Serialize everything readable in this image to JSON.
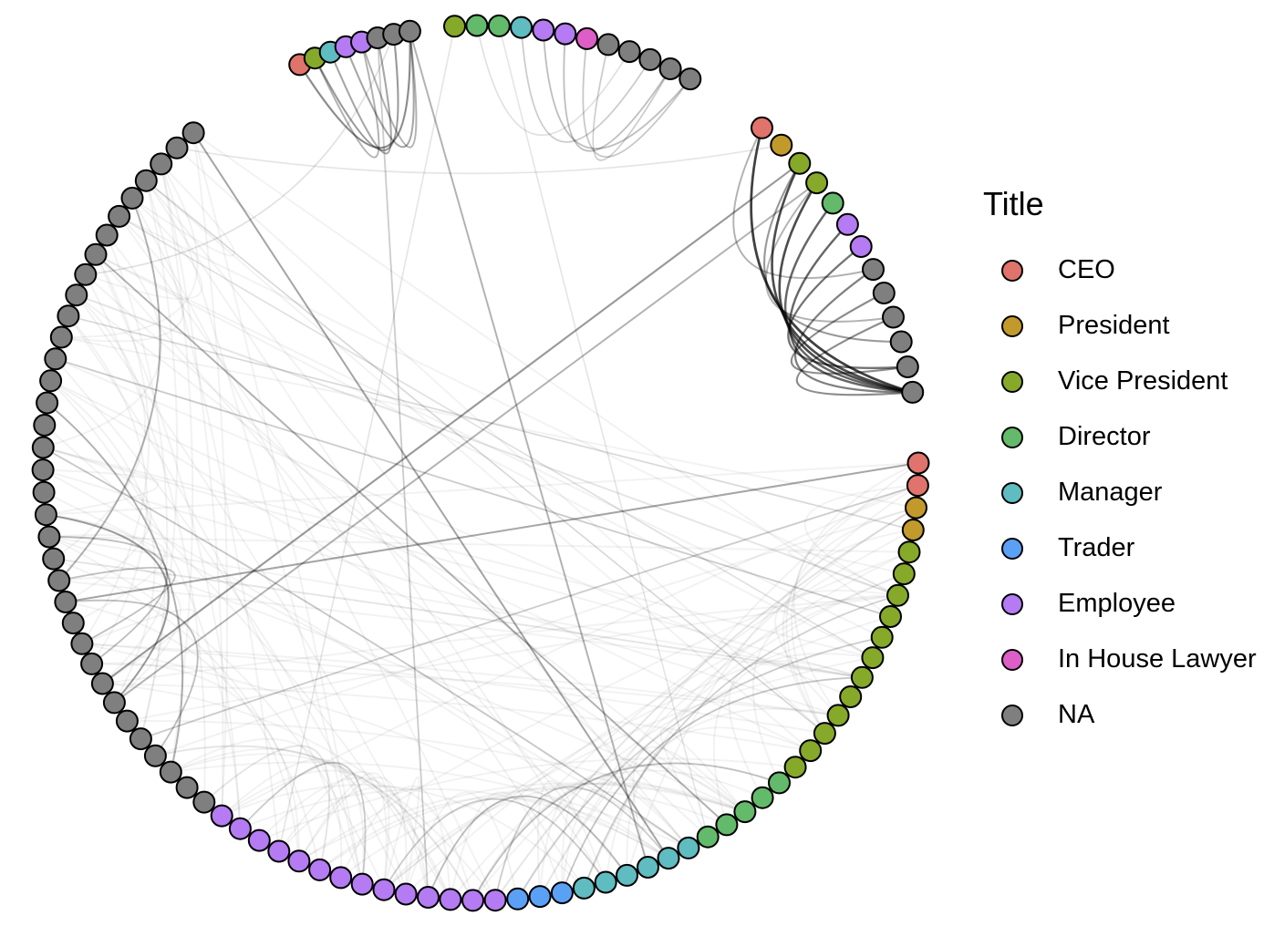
{
  "legend": {
    "title": "Title",
    "items": [
      {
        "key": "CEO",
        "label": "CEO",
        "color": "#E0736B"
      },
      {
        "key": "President",
        "label": "President",
        "color": "#C29A2C"
      },
      {
        "key": "Vice President",
        "label": "Vice President",
        "color": "#86A92A"
      },
      {
        "key": "Director",
        "label": "Director",
        "color": "#63BA6A"
      },
      {
        "key": "Manager",
        "label": "Manager",
        "color": "#5FBCC0"
      },
      {
        "key": "Trader",
        "label": "Trader",
        "color": "#5AA1F6"
      },
      {
        "key": "Employee",
        "label": "Employee",
        "color": "#B47BF2"
      },
      {
        "key": "In House Lawyer",
        "label": "In House Lawyer",
        "color": "#DD5EC7"
      },
      {
        "key": "NA",
        "label": "NA",
        "color": "#7F7F7F"
      }
    ]
  },
  "diagram": {
    "type": "circular-network",
    "clusters": [
      {
        "name": "top-left",
        "nodes": [
          "CEO",
          "Vice President",
          "Manager",
          "Employee",
          "Employee",
          "NA",
          "NA",
          "NA"
        ]
      },
      {
        "name": "top-right",
        "nodes": [
          "Vice President",
          "Director",
          "Director",
          "Manager",
          "Employee",
          "Employee",
          "In House Lawyer",
          "NA",
          "NA",
          "NA",
          "NA",
          "NA"
        ]
      },
      {
        "name": "right-upper",
        "nodes": [
          "CEO",
          "President",
          "Vice President",
          "Vice President",
          "Director",
          "Employee",
          "Employee",
          "NA",
          "NA",
          "NA",
          "NA",
          "NA",
          "NA"
        ]
      },
      {
        "name": "main-arc",
        "nodes": [
          "CEO",
          "CEO",
          "President",
          "President",
          "Vice President",
          "Vice President",
          "Vice President",
          "Vice President",
          "Vice President",
          "Vice President",
          "Vice President",
          "Vice President",
          "Vice President",
          "Vice President",
          "Vice President",
          "Vice President",
          "Director",
          "Director",
          "Director",
          "Director",
          "Director",
          "Manager",
          "Manager",
          "Manager",
          "Manager",
          "Manager",
          "Manager",
          "Trader",
          "Trader",
          "Trader",
          "Employee",
          "Employee",
          "Employee",
          "Employee",
          "Employee",
          "Employee",
          "Employee",
          "Employee",
          "Employee",
          "Employee",
          "Employee",
          "Employee",
          "Employee",
          "Employee",
          "NA",
          "NA",
          "NA",
          "NA",
          "NA",
          "NA",
          "NA",
          "NA",
          "NA",
          "NA",
          "NA",
          "NA",
          "NA",
          "NA",
          "NA",
          "NA",
          "NA",
          "NA",
          "NA",
          "NA",
          "NA",
          "NA",
          "NA",
          "NA",
          "NA",
          "NA",
          "NA",
          "NA",
          "NA",
          "NA",
          "NA",
          "NA",
          "NA",
          "NA",
          "NA"
        ]
      }
    ],
    "edges": [
      {
        "from": "right-upper.0",
        "to": "right-upper.12",
        "strength": 0.75
      },
      {
        "from": "right-upper.2",
        "to": "right-upper.12",
        "strength": 0.7
      },
      {
        "from": "right-upper.3",
        "to": "right-upper.12",
        "strength": 0.7
      },
      {
        "from": "right-upper.4",
        "to": "right-upper.12",
        "strength": 0.6
      },
      {
        "from": "right-upper.5",
        "to": "right-upper.12",
        "strength": 0.6
      },
      {
        "from": "right-upper.6",
        "to": "right-upper.11",
        "strength": 0.55
      },
      {
        "from": "right-upper.7",
        "to": "right-upper.12",
        "strength": 0.5
      },
      {
        "from": "right-upper.8",
        "to": "right-upper.11",
        "strength": 0.45
      },
      {
        "from": "right-upper.9",
        "to": "right-upper.12",
        "strength": 0.45
      },
      {
        "from": "right-upper.2",
        "to": "right-upper.10",
        "strength": 0.4
      },
      {
        "from": "right-upper.0",
        "to": "right-upper.7",
        "strength": 0.3
      },
      {
        "from": "right-upper.3",
        "to": "right-upper.9",
        "strength": 0.3
      },
      {
        "from": "top-left.0",
        "to": "top-left.7",
        "strength": 0.45
      },
      {
        "from": "top-left.1",
        "to": "top-left.6",
        "strength": 0.4
      },
      {
        "from": "top-left.2",
        "to": "top-left.5",
        "strength": 0.35
      },
      {
        "from": "top-left.3",
        "to": "top-left.7",
        "strength": 0.35
      },
      {
        "from": "top-left.4",
        "to": "top-left.7",
        "strength": 0.3
      },
      {
        "from": "top-left.1",
        "to": "top-left.4",
        "strength": 0.3
      },
      {
        "from": "top-right.4",
        "to": "top-right.11",
        "strength": 0.25
      },
      {
        "from": "top-right.5",
        "to": "top-right.10",
        "strength": 0.25
      },
      {
        "from": "top-right.6",
        "to": "top-right.11",
        "strength": 0.22
      },
      {
        "from": "top-right.3",
        "to": "top-right.9",
        "strength": 0.2
      },
      {
        "from": "top-right.7",
        "to": "top-right.10",
        "strength": 0.2
      },
      {
        "from": "top-right.1",
        "to": "top-right.8",
        "strength": 0.12
      },
      {
        "from": "main-arc.0",
        "to": "main-arc.55",
        "strength": 0.35
      },
      {
        "from": "main-arc.1",
        "to": "main-arc.48",
        "strength": 0.2
      },
      {
        "from": "right-upper.2",
        "to": "main-arc.51",
        "strength": 0.4
      },
      {
        "from": "right-upper.3",
        "to": "main-arc.50",
        "strength": 0.3
      },
      {
        "from": "top-left.7",
        "to": "main-arc.23",
        "strength": 0.3
      },
      {
        "from": "top-left.5",
        "to": "main-arc.33",
        "strength": 0.2
      },
      {
        "from": "main-arc.78",
        "to": "main-arc.22",
        "strength": 0.35
      },
      {
        "from": "main-arc.71",
        "to": "main-arc.19",
        "strength": 0.3
      },
      {
        "from": "main-arc.66",
        "to": "main-arc.7",
        "strength": 0.2
      },
      {
        "from": "main-arc.62",
        "to": "main-arc.21",
        "strength": 0.22
      },
      {
        "from": "main-arc.75",
        "to": "main-arc.13",
        "strength": 0.15
      },
      {
        "from": "main-arc.59",
        "to": "main-arc.50",
        "strength": 0.35
      },
      {
        "from": "main-arc.60",
        "to": "main-arc.60",
        "strength": 0
      },
      {
        "from": "main-arc.58",
        "to": "main-arc.52",
        "strength": 0.25
      },
      {
        "from": "main-arc.64",
        "to": "main-arc.46",
        "strength": 0.3
      },
      {
        "from": "main-arc.53",
        "to": "main-arc.56",
        "strength": 0.25
      },
      {
        "from": "main-arc.55",
        "to": "main-arc.47",
        "strength": 0.25
      },
      {
        "from": "main-arc.56",
        "to": "main-arc.74",
        "strength": 0.3
      },
      {
        "from": "main-arc.33",
        "to": "main-arc.24",
        "strength": 0.25
      },
      {
        "from": "main-arc.35",
        "to": "main-arc.25",
        "strength": 0.2
      },
      {
        "from": "main-arc.30",
        "to": "main-arc.22",
        "strength": 0.2
      },
      {
        "from": "main-arc.36",
        "to": "main-arc.42",
        "strength": 0.2
      },
      {
        "from": "main-arc.27",
        "to": "main-arc.10",
        "strength": 0.22
      },
      {
        "from": "main-arc.26",
        "to": "main-arc.6",
        "strength": 0.18
      },
      {
        "from": "main-arc.31",
        "to": "main-arc.16",
        "strength": 0.2
      },
      {
        "from": "main-arc.29",
        "to": "main-arc.8",
        "strength": 0.16
      },
      {
        "from": "main-arc.68",
        "to": "main-arc.3",
        "strength": 0.15
      },
      {
        "from": "main-arc.73",
        "to": "main-arc.9",
        "strength": 0.12
      },
      {
        "from": "top-right.0",
        "to": "main-arc.40",
        "strength": 0.1
      },
      {
        "from": "top-right.2",
        "to": "main-arc.20",
        "strength": 0.1
      },
      {
        "from": "top-left.6",
        "to": "main-arc.70",
        "strength": 0.12
      },
      {
        "from": "main-arc.77",
        "to": "right-upper.1",
        "strength": 0.1
      }
    ]
  }
}
